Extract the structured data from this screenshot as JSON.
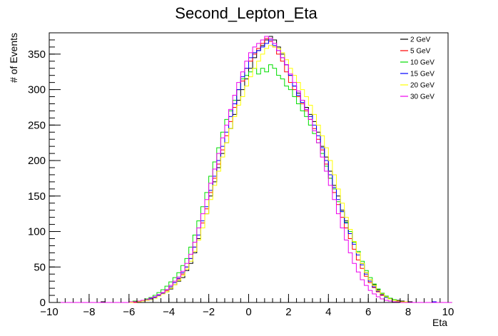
{
  "chart_data": {
    "type": "line",
    "title": "Second_Lepton_Eta",
    "xlabel": "Eta",
    "ylabel": "# of Events",
    "xlim": [
      -10,
      10
    ],
    "ylim": [
      0,
      380
    ],
    "x_ticks": [
      -10,
      -8,
      -6,
      -4,
      -2,
      0,
      2,
      4,
      6,
      8,
      10
    ],
    "y_ticks": [
      0,
      50,
      100,
      150,
      200,
      250,
      300,
      350
    ],
    "grid": false,
    "legend_position": "top-right",
    "bin_edges_start": -10,
    "bin_width": 0.2,
    "series": [
      {
        "name": "2 GeV",
        "color": "#000000",
        "values": [
          0,
          0,
          0,
          0,
          0,
          0,
          0,
          0,
          0,
          0,
          0,
          0,
          0,
          1,
          0,
          0,
          0,
          0,
          0,
          0,
          0,
          1,
          1,
          2,
          3,
          4,
          6,
          9,
          12,
          15,
          19,
          25,
          30,
          35,
          45,
          55,
          70,
          90,
          105,
          125,
          150,
          170,
          190,
          210,
          225,
          245,
          265,
          285,
          300,
          315,
          330,
          345,
          355,
          362,
          370,
          375,
          370,
          360,
          350,
          335,
          320,
          305,
          295,
          285,
          275,
          265,
          255,
          240,
          220,
          205,
          185,
          165,
          150,
          130,
          115,
          100,
          85,
          70,
          55,
          42,
          32,
          25,
          18,
          13,
          9,
          6,
          4,
          3,
          2,
          1,
          1,
          0,
          0,
          0,
          0,
          0,
          1,
          0,
          0,
          0,
          0
        ]
      },
      {
        "name": "5 GeV",
        "color": "#ff0000",
        "values": [
          0,
          0,
          0,
          0,
          0,
          0,
          0,
          0,
          0,
          0,
          0,
          0,
          0,
          0,
          0,
          0,
          0,
          0,
          0,
          0,
          0,
          0,
          1,
          2,
          3,
          5,
          7,
          10,
          13,
          17,
          22,
          28,
          33,
          40,
          50,
          62,
          78,
          95,
          112,
          132,
          155,
          175,
          195,
          215,
          235,
          255,
          275,
          300,
          312,
          330,
          340,
          350,
          358,
          365,
          372,
          368,
          360,
          350,
          340,
          325,
          310,
          300,
          290,
          280,
          270,
          258,
          245,
          230,
          215,
          195,
          175,
          155,
          138,
          120,
          105,
          90,
          75,
          60,
          48,
          37,
          28,
          21,
          15,
          10,
          7,
          5,
          3,
          2,
          1,
          1,
          0,
          0,
          0,
          0,
          0,
          0,
          0,
          0,
          0,
          0,
          0
        ]
      },
      {
        "name": "10 GeV",
        "color": "#00dd00",
        "values": [
          0,
          0,
          0,
          0,
          0,
          0,
          0,
          0,
          0,
          0,
          0,
          0,
          0,
          0,
          0,
          0,
          0,
          0,
          0,
          0,
          1,
          2,
          2,
          3,
          5,
          7,
          10,
          14,
          18,
          23,
          29,
          35,
          42,
          52,
          62,
          78,
          95,
          115,
          135,
          155,
          178,
          198,
          218,
          240,
          258,
          270,
          285,
          300,
          315,
          320,
          325,
          330,
          322,
          330,
          325,
          335,
          330,
          320,
          315,
          305,
          300,
          290,
          280,
          270,
          262,
          250,
          238,
          225,
          210,
          192,
          175,
          160,
          142,
          128,
          113,
          100,
          85,
          72,
          58,
          45,
          35,
          26,
          19,
          13,
          9,
          6,
          4,
          2,
          1,
          1,
          0,
          0,
          0,
          0,
          0,
          0,
          0,
          0,
          0,
          0,
          0
        ]
      },
      {
        "name": "15 GeV",
        "color": "#0000ff",
        "values": [
          0,
          0,
          0,
          0,
          0,
          0,
          0,
          0,
          0,
          0,
          0,
          0,
          0,
          0,
          0,
          0,
          0,
          0,
          0,
          0,
          0,
          1,
          1,
          2,
          3,
          5,
          7,
          10,
          13,
          18,
          22,
          28,
          34,
          42,
          50,
          62,
          78,
          95,
          115,
          135,
          158,
          178,
          200,
          220,
          240,
          262,
          280,
          300,
          318,
          330,
          345,
          352,
          355,
          360,
          365,
          370,
          362,
          355,
          345,
          335,
          320,
          305,
          292,
          282,
          272,
          262,
          250,
          235,
          218,
          200,
          180,
          162,
          145,
          128,
          112,
          97,
          82,
          67,
          53,
          40,
          30,
          22,
          16,
          11,
          7,
          5,
          3,
          2,
          1,
          1,
          0,
          0,
          0,
          0,
          0,
          0,
          1,
          0,
          0,
          0,
          0
        ]
      },
      {
        "name": "20 GeV",
        "color": "#ffff00",
        "values": [
          0,
          0,
          0,
          0,
          0,
          0,
          0,
          0,
          0,
          0,
          0,
          0,
          0,
          0,
          0,
          0,
          0,
          0,
          0,
          0,
          0,
          1,
          1,
          2,
          3,
          4,
          6,
          9,
          12,
          15,
          20,
          25,
          31,
          38,
          47,
          58,
          72,
          88,
          105,
          125,
          145,
          165,
          185,
          205,
          225,
          245,
          262,
          278,
          290,
          305,
          318,
          330,
          340,
          350,
          358,
          362,
          360,
          358,
          352,
          342,
          330,
          320,
          310,
          300,
          290,
          278,
          265,
          250,
          235,
          218,
          200,
          180,
          160,
          140,
          120,
          103,
          86,
          70,
          55,
          42,
          32,
          24,
          17,
          12,
          8,
          5,
          3,
          2,
          1,
          1,
          0,
          0,
          0,
          0,
          0,
          0,
          0,
          0,
          0,
          0,
          0
        ]
      },
      {
        "name": "30 GeV",
        "color": "#ee00ee",
        "values": [
          0,
          0,
          0,
          0,
          0,
          0,
          0,
          0,
          0,
          0,
          0,
          0,
          0,
          0,
          0,
          0,
          0,
          0,
          0,
          0,
          1,
          1,
          2,
          3,
          4,
          6,
          8,
          11,
          14,
          18,
          24,
          30,
          36,
          44,
          55,
          68,
          85,
          105,
          125,
          145,
          168,
          188,
          210,
          232,
          250,
          272,
          292,
          310,
          325,
          340,
          352,
          360,
          365,
          370,
          375,
          372,
          365,
          355,
          345,
          335,
          322,
          310,
          298,
          285,
          272,
          258,
          242,
          225,
          205,
          185,
          165,
          145,
          125,
          105,
          88,
          70,
          55,
          43,
          32,
          24,
          17,
          12,
          8,
          5,
          3,
          2,
          1,
          1,
          0,
          0,
          0,
          0,
          0,
          0,
          0,
          0,
          0,
          0,
          0,
          0,
          0
        ]
      }
    ]
  }
}
